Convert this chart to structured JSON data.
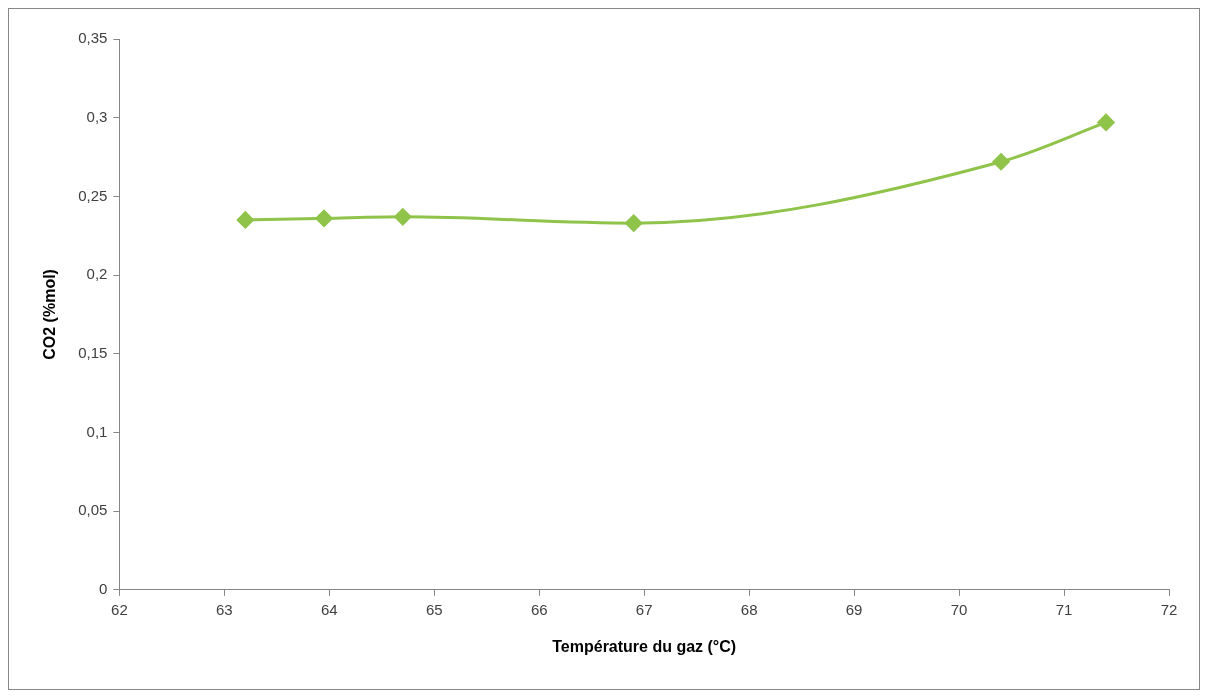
{
  "chart_data": {
    "type": "line",
    "xlabel": "Température du gaz (°C)",
    "ylabel": "CO2 (%mol)",
    "x": [
      63.2,
      63.95,
      64.7,
      66.9,
      70.4,
      71.4
    ],
    "series": [
      {
        "color": "#8fc34a",
        "values": [
          0.235,
          0.236,
          0.237,
          0.233,
          0.272,
          0.297
        ]
      }
    ],
    "xlim": [
      62,
      72
    ],
    "xticks": [
      62,
      63,
      64,
      65,
      66,
      67,
      68,
      69,
      70,
      71,
      72
    ],
    "ylim": [
      0,
      0.35
    ],
    "yticks": [
      0,
      {
        "value": 0.05,
        "label": "0,05"
      },
      {
        "value": 0.1,
        "label": "0,1"
      },
      {
        "value": 0.15,
        "label": "0,15"
      },
      {
        "value": 0.2,
        "label": "0,2"
      },
      {
        "value": 0.25,
        "label": "0,25"
      },
      {
        "value": 0.3,
        "label": "0,3"
      },
      {
        "value": 0.35,
        "label": "0,35"
      }
    ],
    "grid": false,
    "legend": false,
    "marker": "diamond",
    "line_style": "solid"
  }
}
